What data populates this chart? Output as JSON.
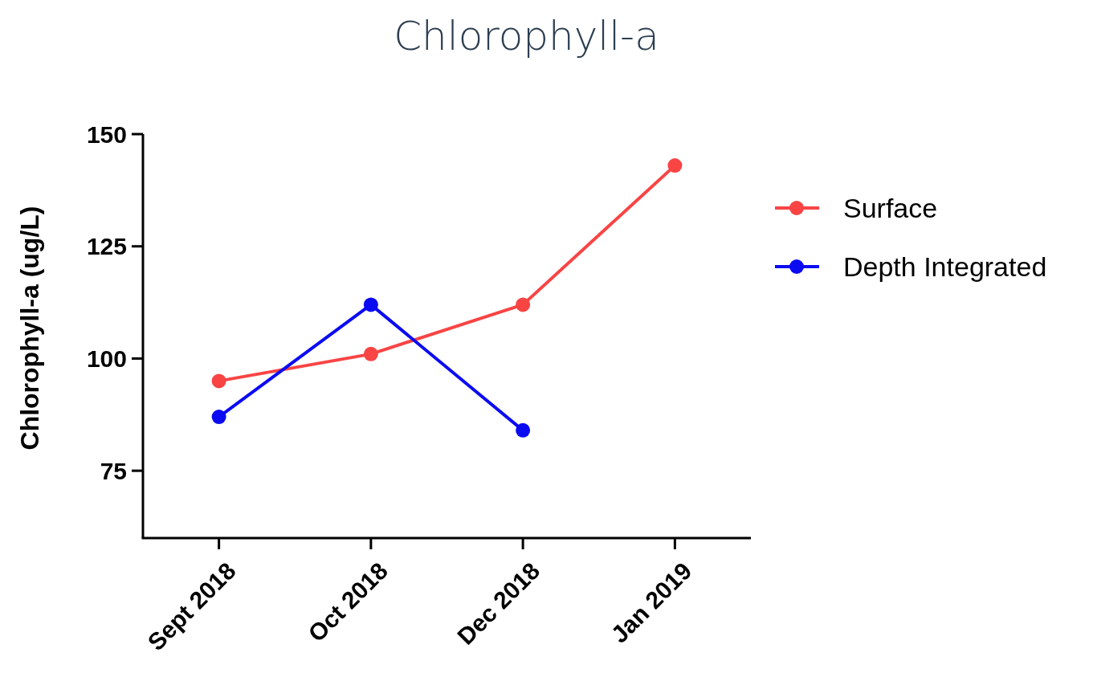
{
  "chart_data": {
    "type": "line",
    "title": "Chlorophyll-a",
    "ylabel": "Chlorophyll-a (ug/L)",
    "categories": [
      "Sept 2018",
      "Oct 2018",
      "Dec 2018",
      "Jan 2019"
    ],
    "series": [
      {
        "name": "Surface",
        "color": "#f94444",
        "values": [
          95,
          101,
          112,
          143
        ]
      },
      {
        "name": "Depth Integrated",
        "color": "#0b0bf2",
        "values": [
          87,
          112,
          84,
          null
        ]
      }
    ],
    "ylim": [
      60,
      150
    ],
    "yticks": [
      75,
      100,
      125,
      150
    ],
    "grid": false,
    "legend": "right",
    "marker": "circle",
    "line_style": "solid"
  }
}
